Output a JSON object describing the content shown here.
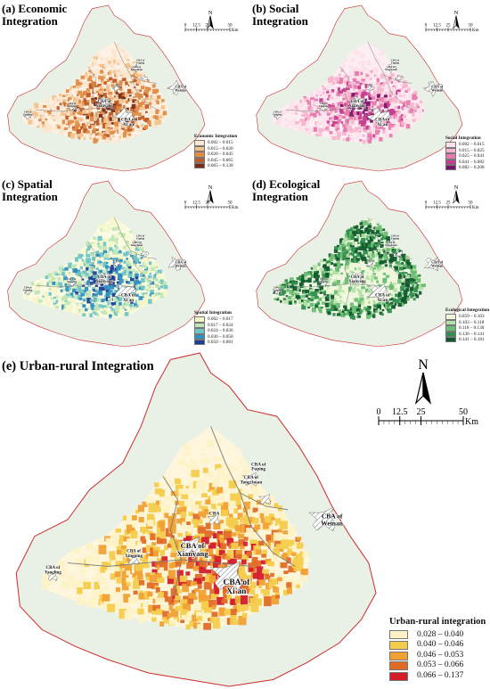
{
  "panels": [
    {
      "id": "a",
      "title": "(a) Economic\nIntegration",
      "legend_title": "Economic Integration",
      "classes": [
        "0.002 – 0.015",
        "0.015 – 0.020",
        "0.020 – 0.045",
        "0.045 – 0.065",
        "0.065 – 0.130"
      ],
      "colors": [
        "#fbe6cf",
        "#f2c28e",
        "#e08c46",
        "#bf5a24",
        "#7a2b12"
      ],
      "base": "#fdf1e3"
    },
    {
      "id": "b",
      "title": "(b) Social\nIntegration",
      "legend_title": "Social Integration",
      "classes": [
        "0.002 – 0.015",
        "0.015 – 0.025",
        "0.025 – 0.041",
        "0.041 – 0.082",
        "0.082 – 0.208"
      ],
      "colors": [
        "#fde0ea",
        "#f7b4cd",
        "#e879ae",
        "#c43d8e",
        "#7a1268"
      ],
      "base": "#fdeef3"
    },
    {
      "id": "c",
      "title": "(c) Spatial\nIntegration",
      "legend_title": "Spatial Integration",
      "classes": [
        "0.002 – 0.017",
        "0.017 – 0.024",
        "0.024 – 0.036",
        "0.036 – 0.050",
        "0.050 – 0.081"
      ],
      "colors": [
        "#f4f7c8",
        "#bfe6b8",
        "#6fc4c8",
        "#2f8fc0",
        "#1e3d97"
      ],
      "base": "#fafbe2"
    },
    {
      "id": "d",
      "title": "(d) Ecological\nIntegration",
      "legend_title": "Ecological Integration",
      "classes": [
        "0.059 – 0.103",
        "0.103 – 0.118",
        "0.118 – 0.130",
        "0.130 – 0.141",
        "0.141 – 0.181"
      ],
      "colors": [
        "#eef7da",
        "#b5e0a4",
        "#6cbd73",
        "#2f8f4a",
        "#0f5a2c"
      ],
      "base": "#f1f8e4"
    },
    {
      "id": "e",
      "title": "(e) Urban-rural Integration",
      "legend_title": "Urban-rural integration",
      "classes": [
        "0.028 – 0.040",
        "0.040 – 0.046",
        "0.046 – 0.053",
        "0.053 – 0.066",
        "0.066 – 0.137"
      ],
      "colors": [
        "#fdf2c6",
        "#f4cc4c",
        "#f0a134",
        "#e06b26",
        "#d21e2a"
      ],
      "base": "#fef6dc"
    }
  ],
  "scale_bar": {
    "ticks": [
      "0",
      "12.5",
      "25",
      "50"
    ],
    "unit": "Km"
  },
  "north_label": "N",
  "city_labels": {
    "main": [
      "CBA of\nXi'an",
      "CBA of\nXianyang"
    ],
    "weinan": "CBA of\nWeinan",
    "tongchuan": "CBA of\nTongchuan",
    "fuping": "CBA of\nFuping",
    "xingping": "CBA of\nXingping",
    "yangling": "CBA of\nYangling",
    "other": "CBA"
  },
  "colors": {
    "outer_boundary": "#cc2b2b",
    "district_boundary": "#7a7a7a",
    "background_region": "#e9f0e6",
    "hatch": "#666666"
  }
}
